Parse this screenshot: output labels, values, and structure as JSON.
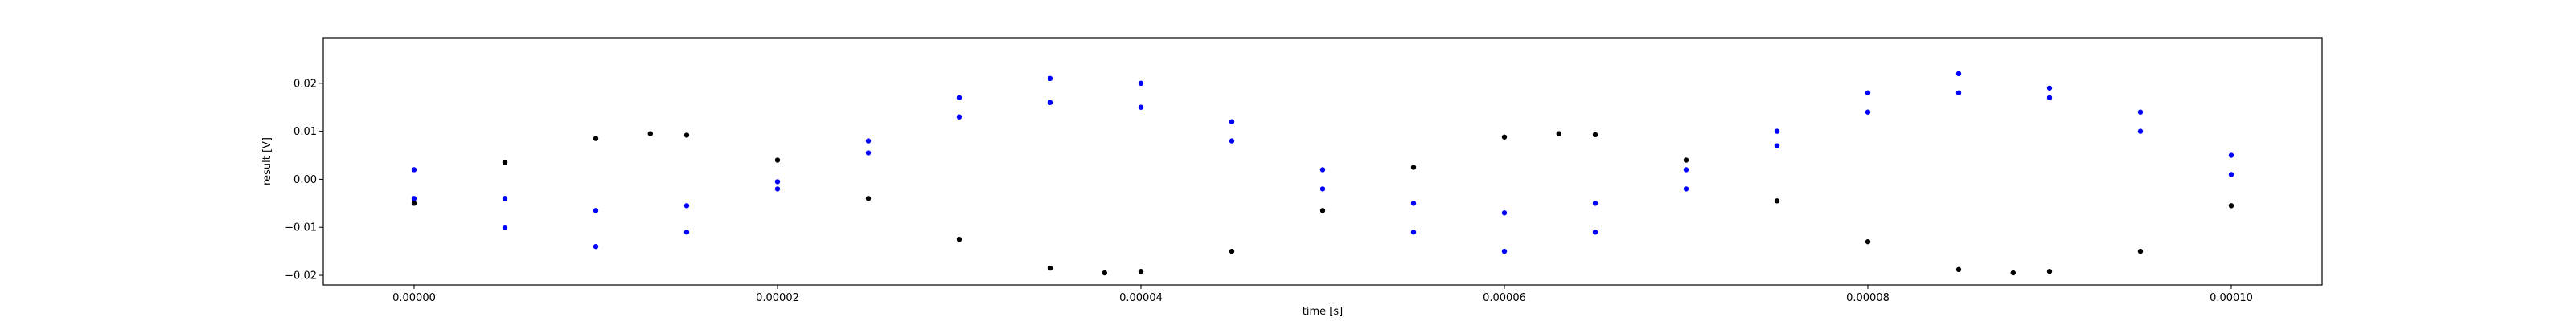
{
  "chart_data": {
    "type": "scatter",
    "xlabel": "time [s]",
    "ylabel": "result [V]",
    "xlim": [
      -5e-06,
      0.000105
    ],
    "ylim": [
      -0.022,
      0.0295
    ],
    "grid": false,
    "xticks": [
      {
        "value": 0.0,
        "label": "0.00000"
      },
      {
        "value": 2e-05,
        "label": "0.00002"
      },
      {
        "value": 4e-05,
        "label": "0.00004"
      },
      {
        "value": 6e-05,
        "label": "0.00006"
      },
      {
        "value": 8e-05,
        "label": "0.00008"
      },
      {
        "value": 0.0001,
        "label": "0.00010"
      }
    ],
    "yticks": [
      {
        "value": -0.02,
        "label": "−0.02"
      },
      {
        "value": -0.01,
        "label": "−0.01"
      },
      {
        "value": 0.0,
        "label": "0.00"
      },
      {
        "value": 0.01,
        "label": "0.01"
      },
      {
        "value": 0.02,
        "label": "0.02"
      }
    ],
    "series": [
      {
        "color": "#000000",
        "marker": "dot",
        "x": [
          0.0,
          5e-06,
          1e-05,
          1.3e-05,
          1.5e-05,
          2e-05,
          2.5e-05,
          3e-05,
          3.5e-05,
          3.8e-05,
          4e-05,
          4.5e-05,
          5e-05,
          5.5e-05,
          6e-05,
          6.3e-05,
          6.5e-05,
          7e-05,
          7.5e-05,
          8e-05,
          8.5e-05,
          8.8e-05,
          9e-05,
          9.5e-05,
          0.0001
        ],
        "y": [
          -0.005,
          0.0035,
          0.0085,
          0.0095,
          0.0092,
          0.004,
          -0.004,
          -0.0125,
          -0.0185,
          -0.0195,
          -0.0192,
          -0.015,
          -0.0065,
          0.0025,
          0.0088,
          0.0095,
          0.0093,
          0.004,
          -0.0045,
          -0.013,
          -0.0188,
          -0.0195,
          -0.0192,
          -0.015,
          -0.0055
        ]
      },
      {
        "color": "#0000ff",
        "marker": "dot",
        "x": [
          0.0,
          5e-06,
          1e-05,
          1.5e-05,
          2e-05,
          2.5e-05,
          3e-05,
          3.5e-05,
          4e-05,
          4.5e-05,
          5e-05,
          5.5e-05,
          6e-05,
          6.5e-05,
          7e-05,
          7.5e-05,
          8e-05,
          8.5e-05,
          9e-05,
          9.5e-05,
          0.0001
        ],
        "y": [
          0.002,
          -0.004,
          -0.0065,
          -0.0055,
          -0.0005,
          0.008,
          0.017,
          0.021,
          0.02,
          0.012,
          0.002,
          -0.005,
          -0.007,
          -0.005,
          0.002,
          0.01,
          0.018,
          0.022,
          0.019,
          0.014,
          0.005
        ]
      },
      {
        "color": "#0000ff",
        "marker": "dot",
        "x": [
          0.0,
          5e-06,
          1e-05,
          1.5e-05,
          2e-05,
          2.5e-05,
          3e-05,
          3.5e-05,
          4e-05,
          4.5e-05,
          5e-05,
          5.5e-05,
          6e-05,
          6.5e-05,
          7e-05,
          7.5e-05,
          8e-05,
          8.5e-05,
          9e-05,
          9.5e-05,
          0.0001
        ],
        "y": [
          -0.004,
          -0.01,
          -0.014,
          -0.011,
          -0.002,
          0.0055,
          0.013,
          0.016,
          0.015,
          0.008,
          -0.002,
          -0.011,
          -0.015,
          -0.011,
          -0.002,
          0.007,
          0.014,
          0.018,
          0.017,
          0.01,
          0.001
        ]
      }
    ]
  }
}
